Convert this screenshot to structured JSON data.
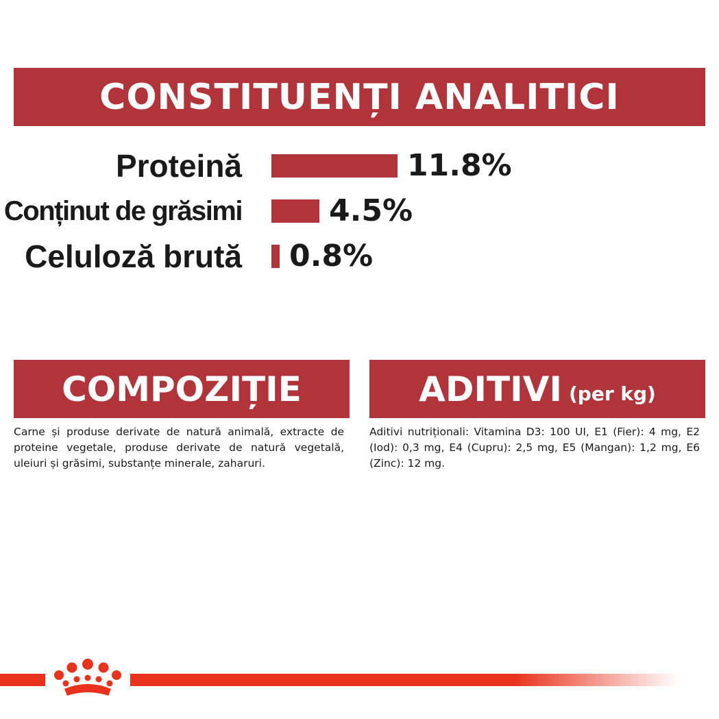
{
  "sections": {
    "analytic": {
      "title": "CONSTITUENȚI ANALITICI",
      "rows": [
        {
          "label": "Proteină",
          "value": "11.8%",
          "percent": 11.8
        },
        {
          "label": "Conținut de grăsimi",
          "value": "4.5%",
          "percent": 4.5
        },
        {
          "label": "Celuloză brută",
          "value": "0.8%",
          "percent": 0.8
        }
      ]
    },
    "composition": {
      "title": "COMPOZIȚIE",
      "text": "Carne și produse derivate de natură animală, extracte de proteine vegetale, produse derivate de natură vegetală, uleiuri și grăsimi, substanțe minerale, zaharuri."
    },
    "additives": {
      "title": "ADITIVI",
      "title_suffix": "(per kg)",
      "text": "Aditivi nutriționali: Vitamina D3: 100 UI, E1 (Fier): 4 mg, E2 (Iod): 0,3 mg, E4 (Cupru): 2,5 mg, E5 (Mangan): 1,2 mg, E6 (Zinc): 12 mg."
    }
  },
  "colors": {
    "banner": "#b1343a",
    "bar": "#b1343a",
    "brand_red": "#e8321c"
  },
  "footer": {
    "logo_icon": "crown-logo-icon"
  }
}
